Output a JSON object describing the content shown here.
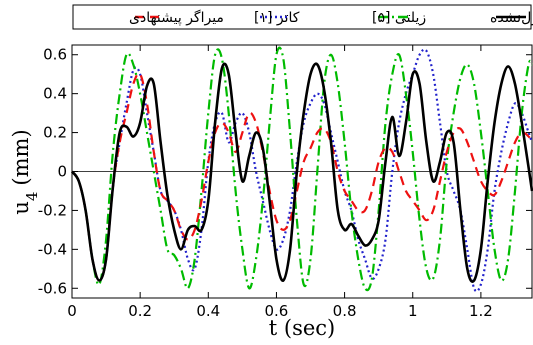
{
  "chart_data": {
    "type": "line",
    "xlabel": "t (sec)",
    "ylabel_main": "u",
    "ylabel_sub": "4",
    "ylabel_unit": "(mm)",
    "xlim": [
      0,
      1.35
    ],
    "ylim": [
      -0.65,
      0.65
    ],
    "x_ticks": [
      0,
      0.2,
      0.4,
      0.6,
      0.8,
      1,
      1.2
    ],
    "x_tick_labels": [
      "0",
      "0.2",
      "0.4",
      "0.6",
      "0.8",
      "1",
      "1.2"
    ],
    "y_ticks": [
      0.6,
      0.4,
      0.2,
      0,
      -0.2,
      -0.4,
      -0.6
    ],
    "y_tick_labels": [
      "0.6",
      "0.4",
      "0.2",
      "0",
      "-0.2",
      "-0.4",
      "-0.6"
    ],
    "zero_line": true,
    "grid": false,
    "legend_position": "top",
    "series": [
      {
        "name": "کنترل‌نشده",
        "color": "#000000",
        "style": "solid",
        "x": [
          0,
          0.02,
          0.04,
          0.06,
          0.08,
          0.1,
          0.12,
          0.14,
          0.16,
          0.18,
          0.2,
          0.22,
          0.24,
          0.26,
          0.28,
          0.3,
          0.32,
          0.34,
          0.36,
          0.38,
          0.4,
          0.42,
          0.44,
          0.46,
          0.48,
          0.5,
          0.52,
          0.54,
          0.56,
          0.58,
          0.6,
          0.62,
          0.64,
          0.66,
          0.68,
          0.7,
          0.72,
          0.74,
          0.76,
          0.78,
          0.8,
          0.82,
          0.84,
          0.86,
          0.88,
          0.9,
          0.92,
          0.94,
          0.96,
          0.98,
          1.0,
          1.02,
          1.04,
          1.06,
          1.08,
          1.1,
          1.12,
          1.14,
          1.16,
          1.18,
          1.2,
          1.22,
          1.24,
          1.26,
          1.28,
          1.3,
          1.32,
          1.34,
          1.35
        ],
        "y": [
          0,
          -0.05,
          -0.2,
          -0.45,
          -0.56,
          -0.45,
          -0.08,
          0.2,
          0.23,
          0.18,
          0.25,
          0.44,
          0.45,
          0.15,
          -0.12,
          -0.3,
          -0.4,
          -0.3,
          -0.28,
          -0.3,
          -0.15,
          0.25,
          0.53,
          0.5,
          0.2,
          -0.05,
          0.08,
          0.2,
          0.12,
          -0.15,
          -0.45,
          -0.56,
          -0.4,
          0,
          0.3,
          0.5,
          0.55,
          0.42,
          0.15,
          -0.2,
          -0.3,
          -0.27,
          -0.33,
          -0.38,
          -0.35,
          -0.25,
          0.05,
          0.28,
          0.08,
          0.25,
          0.5,
          0.45,
          0.15,
          -0.05,
          0.05,
          0.2,
          0.15,
          -0.2,
          -0.5,
          -0.56,
          -0.4,
          -0.05,
          0.25,
          0.45,
          0.54,
          0.45,
          0.25,
          0.02,
          -0.1
        ]
      },
      {
        "name": "زیلتی [۵]",
        "color": "#00bb00",
        "style": "dashdot",
        "x": [
          0,
          0.02,
          0.04,
          0.06,
          0.08,
          0.1,
          0.12,
          0.14,
          0.16,
          0.18,
          0.2,
          0.22,
          0.24,
          0.26,
          0.28,
          0.3,
          0.32,
          0.34,
          0.36,
          0.38,
          0.4,
          0.42,
          0.44,
          0.46,
          0.48,
          0.5,
          0.52,
          0.54,
          0.56,
          0.58,
          0.6,
          0.62,
          0.64,
          0.66,
          0.68,
          0.7,
          0.72,
          0.74,
          0.76,
          0.78,
          0.8,
          0.82,
          0.84,
          0.86,
          0.88,
          0.9,
          0.92,
          0.94,
          0.96,
          0.98,
          1.0,
          1.02,
          1.04,
          1.06,
          1.08,
          1.1,
          1.12,
          1.14,
          1.16,
          1.18,
          1.2,
          1.22,
          1.24,
          1.26,
          1.28,
          1.3,
          1.32,
          1.34,
          1.35
        ],
        "y": [
          0,
          -0.05,
          -0.2,
          -0.45,
          -0.58,
          -0.35,
          0.1,
          0.4,
          0.6,
          0.55,
          0.4,
          0.2,
          0,
          -0.2,
          -0.4,
          -0.43,
          -0.5,
          -0.6,
          -0.45,
          -0.1,
          0.3,
          0.6,
          0.58,
          0.3,
          -0.1,
          -0.4,
          -0.6,
          -0.45,
          -0.15,
          0.25,
          0.6,
          0.58,
          0.2,
          -0.25,
          -0.58,
          -0.45,
          0,
          0.45,
          0.6,
          0.45,
          0.15,
          -0.2,
          -0.45,
          -0.6,
          -0.55,
          -0.2,
          0.25,
          0.5,
          0.6,
          0.4,
          0.1,
          -0.25,
          -0.5,
          -0.55,
          -0.35,
          0.05,
          0.3,
          0.48,
          0.55,
          0.45,
          0.2,
          -0.1,
          -0.4,
          -0.56,
          -0.45,
          -0.1,
          0.3,
          0.55,
          0.55
        ]
      },
      {
        "name": "کاتر [۱]",
        "color": "#2222cc",
        "style": "dotted",
        "x": [
          0,
          0.02,
          0.04,
          0.06,
          0.08,
          0.1,
          0.12,
          0.14,
          0.16,
          0.18,
          0.2,
          0.22,
          0.24,
          0.26,
          0.28,
          0.3,
          0.32,
          0.34,
          0.36,
          0.38,
          0.4,
          0.42,
          0.44,
          0.46,
          0.48,
          0.5,
          0.52,
          0.54,
          0.56,
          0.58,
          0.6,
          0.62,
          0.64,
          0.66,
          0.68,
          0.7,
          0.72,
          0.74,
          0.76,
          0.78,
          0.8,
          0.82,
          0.84,
          0.86,
          0.88,
          0.9,
          0.92,
          0.94,
          0.96,
          0.98,
          1.0,
          1.02,
          1.04,
          1.06,
          1.08,
          1.1,
          1.12,
          1.14,
          1.16,
          1.18,
          1.2,
          1.22,
          1.24,
          1.26,
          1.28,
          1.3,
          1.32,
          1.34,
          1.35
        ],
        "y": [
          0,
          -0.05,
          -0.2,
          -0.45,
          -0.56,
          -0.45,
          -0.08,
          0.15,
          0.35,
          0.52,
          0.5,
          0.3,
          0.1,
          -0.1,
          -0.15,
          -0.2,
          -0.3,
          -0.45,
          -0.5,
          -0.3,
          0.05,
          0.25,
          0.3,
          0.15,
          0.25,
          0.3,
          0.2,
          0,
          -0.15,
          -0.3,
          -0.4,
          -0.35,
          -0.2,
          0.05,
          0.25,
          0.35,
          0.4,
          0.35,
          0.2,
          0.05,
          -0.1,
          -0.2,
          -0.35,
          -0.45,
          -0.55,
          -0.5,
          -0.35,
          0,
          0.25,
          0.4,
          0.5,
          0.6,
          0.62,
          0.5,
          0.25,
          0,
          -0.1,
          -0.2,
          -0.4,
          -0.6,
          -0.58,
          -0.4,
          -0.1,
          0.1,
          0.25,
          0.35,
          0.3,
          0.2,
          0.15
        ]
      },
      {
        "name": "میراگر پیشنهادی",
        "color": "#ee1111",
        "style": "dashed",
        "x": [
          0,
          0.02,
          0.04,
          0.06,
          0.08,
          0.1,
          0.12,
          0.14,
          0.16,
          0.18,
          0.2,
          0.22,
          0.24,
          0.26,
          0.28,
          0.3,
          0.32,
          0.34,
          0.36,
          0.38,
          0.4,
          0.42,
          0.44,
          0.46,
          0.48,
          0.5,
          0.52,
          0.54,
          0.56,
          0.58,
          0.6,
          0.62,
          0.64,
          0.66,
          0.68,
          0.7,
          0.72,
          0.74,
          0.76,
          0.78,
          0.8,
          0.82,
          0.84,
          0.86,
          0.88,
          0.9,
          0.92,
          0.94,
          0.96,
          0.98,
          1.0,
          1.02,
          1.04,
          1.06,
          1.08,
          1.1,
          1.12,
          1.14,
          1.16,
          1.18,
          1.2,
          1.22,
          1.24,
          1.26,
          1.28,
          1.3,
          1.32,
          1.34,
          1.35
        ],
        "y": [
          0,
          -0.05,
          -0.2,
          -0.45,
          -0.56,
          -0.45,
          -0.08,
          0.15,
          0.3,
          0.45,
          0.5,
          0.35,
          0.1,
          -0.1,
          -0.15,
          -0.2,
          -0.3,
          -0.35,
          -0.3,
          -0.15,
          0.05,
          0.2,
          0.25,
          0.2,
          0.1,
          0.2,
          0.3,
          0.25,
          0.1,
          -0.1,
          -0.25,
          -0.3,
          -0.25,
          -0.1,
          0.05,
          0.12,
          0.2,
          0.22,
          0.15,
          0,
          -0.1,
          -0.15,
          -0.2,
          -0.2,
          -0.1,
          0.05,
          0.12,
          0.1,
          0,
          -0.1,
          -0.15,
          -0.2,
          -0.25,
          -0.2,
          -0.05,
          0.1,
          0.2,
          0.22,
          0.15,
          0.05,
          -0.05,
          -0.1,
          -0.12,
          -0.05,
          0.05,
          0.15,
          0.2,
          0.18,
          0.15
        ]
      }
    ]
  }
}
